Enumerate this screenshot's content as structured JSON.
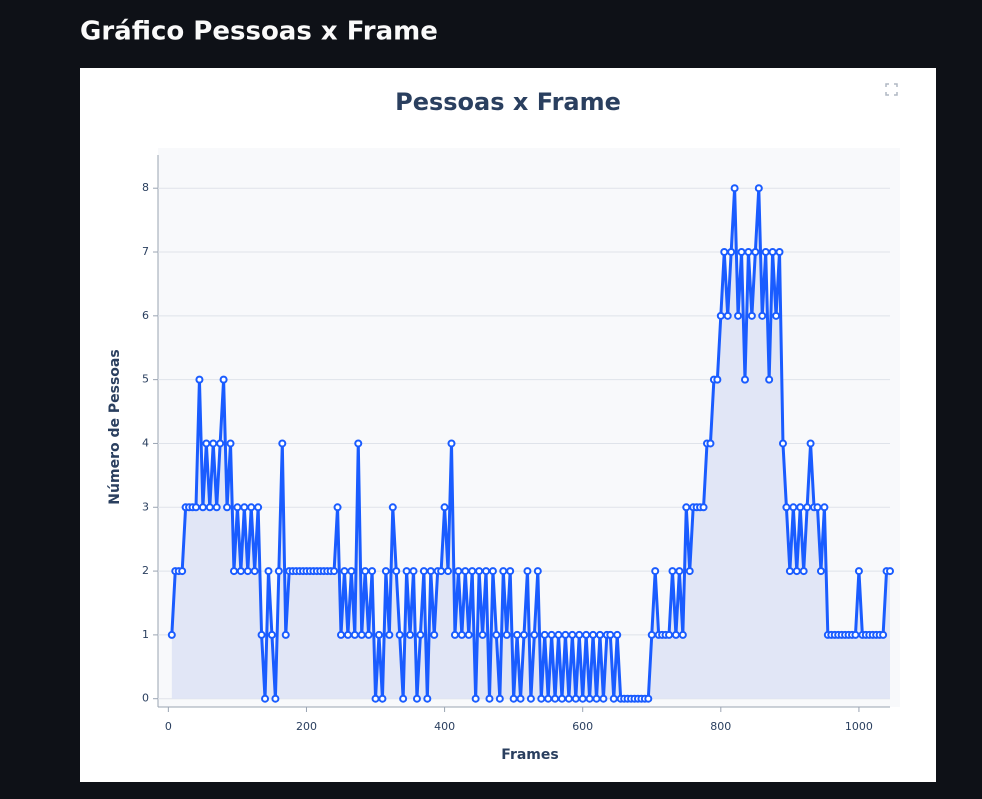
{
  "header": {
    "title": "Gráfico Pessoas x Frame"
  },
  "chart_data": {
    "type": "line",
    "title": "Pessoas x Frame",
    "x_label": "Frames",
    "y_label": "Número de Pessoas",
    "x": [
      5,
      10,
      15,
      20,
      25,
      30,
      35,
      40,
      45,
      50,
      55,
      60,
      65,
      70,
      75,
      80,
      85,
      90,
      95,
      100,
      105,
      110,
      115,
      120,
      125,
      130,
      135,
      140,
      145,
      150,
      155,
      160,
      165,
      170,
      175,
      180,
      185,
      190,
      195,
      200,
      205,
      210,
      215,
      220,
      225,
      230,
      235,
      240,
      245,
      250,
      255,
      260,
      265,
      270,
      275,
      280,
      285,
      290,
      295,
      300,
      305,
      310,
      315,
      320,
      325,
      330,
      335,
      340,
      345,
      350,
      355,
      360,
      365,
      370,
      375,
      380,
      385,
      390,
      395,
      400,
      405,
      410,
      415,
      420,
      425,
      430,
      435,
      440,
      445,
      450,
      455,
      460,
      465,
      470,
      475,
      480,
      485,
      490,
      495,
      500,
      505,
      510,
      515,
      520,
      525,
      530,
      535,
      540,
      545,
      550,
      555,
      560,
      565,
      570,
      575,
      580,
      585,
      590,
      595,
      600,
      605,
      610,
      615,
      620,
      625,
      630,
      635,
      640,
      645,
      650,
      655,
      660,
      665,
      670,
      675,
      680,
      685,
      690,
      695,
      700,
      705,
      710,
      715,
      720,
      725,
      730,
      735,
      740,
      745,
      750,
      755,
      760,
      765,
      770,
      775,
      780,
      785,
      790,
      795,
      800,
      805,
      810,
      815,
      820,
      825,
      830,
      835,
      840,
      845,
      850,
      855,
      860,
      865,
      870,
      875,
      880,
      885,
      890,
      895,
      900,
      905,
      910,
      915,
      920,
      925,
      930,
      935,
      940,
      945,
      950,
      955,
      960,
      965,
      970,
      975,
      980,
      985,
      990,
      995,
      1000,
      1005,
      1010,
      1015,
      1020,
      1025,
      1030,
      1035,
      1040,
      1045
    ],
    "series": [
      {
        "name": "Pessoas",
        "color": "#1a5cff",
        "fill_color": "#e1e6f6",
        "values": [
          1,
          2,
          2,
          2,
          3,
          3,
          3,
          3,
          5,
          3,
          4,
          3,
          4,
          3,
          4,
          5,
          3,
          4,
          2,
          3,
          2,
          3,
          2,
          3,
          2,
          3,
          1,
          0,
          2,
          1,
          0,
          2,
          4,
          1,
          2,
          2,
          2,
          2,
          2,
          2,
          2,
          2,
          2,
          2,
          2,
          2,
          2,
          2,
          3,
          1,
          2,
          1,
          2,
          1,
          4,
          1,
          2,
          1,
          2,
          0,
          1,
          0,
          2,
          1,
          3,
          2,
          1,
          0,
          2,
          1,
          2,
          0,
          1,
          2,
          0,
          2,
          1,
          2,
          2,
          3,
          2,
          4,
          1,
          2,
          1,
          2,
          1,
          2,
          0,
          2,
          1,
          2,
          0,
          2,
          1,
          0,
          2,
          1,
          2,
          0,
          1,
          0,
          1,
          2,
          0,
          1,
          2,
          0,
          1,
          0,
          1,
          0,
          1,
          0,
          1,
          0,
          1,
          0,
          1,
          0,
          1,
          0,
          1,
          0,
          1,
          0,
          1,
          1,
          0,
          1,
          0,
          0,
          0,
          0,
          0,
          0,
          0,
          0,
          0,
          1,
          2,
          1,
          1,
          1,
          1,
          2,
          1,
          2,
          1,
          3,
          2,
          3,
          3,
          3,
          3,
          4,
          4,
          5,
          5,
          6,
          7,
          6,
          7,
          8,
          6,
          7,
          5,
          7,
          6,
          7,
          8,
          6,
          7,
          5,
          7,
          6,
          7,
          4,
          3,
          2,
          3,
          2,
          3,
          2,
          3,
          4,
          3,
          3,
          2,
          3,
          1,
          1,
          1,
          1,
          1,
          1,
          1,
          1,
          1,
          2,
          1,
          1,
          1,
          1,
          1,
          1,
          1,
          2,
          2
        ]
      }
    ],
    "fill": "tozeroy",
    "markers": true,
    "xlim": [
      -15,
      1045
    ],
    "ylim": [
      -0.13,
      8.63
    ],
    "xticks": [
      0,
      200,
      400,
      600,
      800,
      1000
    ],
    "yticks": [
      0,
      1,
      2,
      3,
      4,
      5,
      6,
      7,
      8
    ],
    "grid": true
  }
}
